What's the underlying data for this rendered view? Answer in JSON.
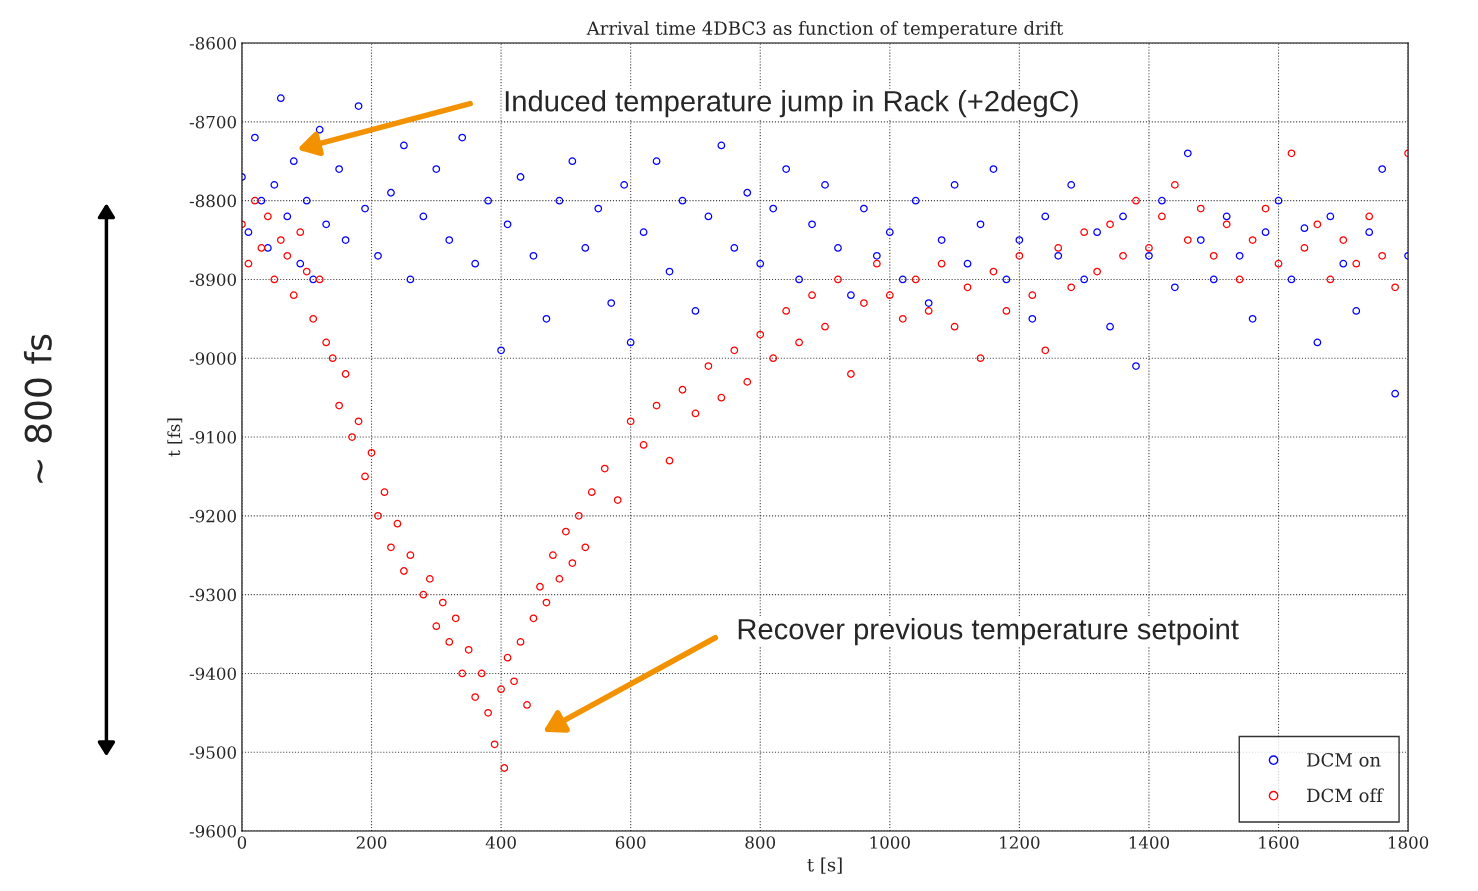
{
  "chart_data": {
    "type": "scatter",
    "title": "Arrival time 4DBC3 as function of temperature drift",
    "xlabel": "t [s]",
    "ylabel": "t [fs]",
    "xlim": [
      0,
      1800
    ],
    "xticks": [
      0,
      200,
      400,
      600,
      800,
      1000,
      1200,
      1400,
      1600,
      1800
    ],
    "ylim": [
      -9600,
      -8600
    ],
    "yticks": [
      -9600,
      -9500,
      -9400,
      -9300,
      -9200,
      -9100,
      -9000,
      -8900,
      -8800,
      -8700,
      -8600
    ],
    "grid": true,
    "legend": "bottom right",
    "marker": "circle",
    "annotations": [
      "Induced temperature jump in Rack (+2degC)",
      "Recover previous temperature setpoint",
      "~ 800 fs"
    ],
    "series": [
      {
        "name": "DCM on",
        "color": "#0000ff",
        "x": [
          0,
          10,
          20,
          30,
          40,
          50,
          60,
          70,
          80,
          90,
          100,
          110,
          120,
          130,
          150,
          160,
          180,
          190,
          210,
          230,
          250,
          260,
          280,
          300,
          320,
          340,
          360,
          380,
          400,
          410,
          430,
          450,
          470,
          490,
          510,
          530,
          550,
          570,
          590,
          600,
          620,
          640,
          660,
          680,
          700,
          720,
          740,
          760,
          780,
          800,
          820,
          840,
          860,
          880,
          900,
          920,
          940,
          960,
          980,
          1000,
          1020,
          1040,
          1060,
          1080,
          1100,
          1120,
          1140,
          1160,
          1180,
          1200,
          1220,
          1240,
          1260,
          1280,
          1300,
          1320,
          1340,
          1360,
          1380,
          1400,
          1420,
          1440,
          1460,
          1480,
          1500,
          1520,
          1540,
          1560,
          1580,
          1600,
          1620,
          1640,
          1660,
          1680,
          1700,
          1720,
          1740,
          1760,
          1780,
          1800
        ],
        "values": [
          -8770,
          -8840,
          -8720,
          -8800,
          -8860,
          -8780,
          -8670,
          -8820,
          -8750,
          -8880,
          -8800,
          -8900,
          -8710,
          -8830,
          -8760,
          -8850,
          -8680,
          -8810,
          -8870,
          -8790,
          -8730,
          -8900,
          -8820,
          -8760,
          -8850,
          -8720,
          -8880,
          -8800,
          -8990,
          -8830,
          -8770,
          -8870,
          -8950,
          -8800,
          -8750,
          -8860,
          -8810,
          -8930,
          -8780,
          -8980,
          -8840,
          -8750,
          -8890,
          -8800,
          -8940,
          -8820,
          -8730,
          -8860,
          -8790,
          -8880,
          -8810,
          -8760,
          -8900,
          -8830,
          -8780,
          -8860,
          -8920,
          -8810,
          -8870,
          -8840,
          -8900,
          -8800,
          -8930,
          -8850,
          -8780,
          -8880,
          -8830,
          -8760,
          -8900,
          -8850,
          -8950,
          -8820,
          -8870,
          -8780,
          -8900,
          -8840,
          -8960,
          -8820,
          -9010,
          -8870,
          -8800,
          -8910,
          -8740,
          -8850,
          -8900,
          -8820,
          -8870,
          -8950,
          -8840,
          -8800,
          -8900,
          -8835,
          -8980,
          -8820,
          -8880,
          -8940,
          -8840,
          -8760,
          -9045,
          -8870
        ]
      },
      {
        "name": "DCM off",
        "color": "#ff0000",
        "x": [
          0,
          10,
          20,
          30,
          40,
          50,
          60,
          70,
          80,
          90,
          100,
          110,
          120,
          130,
          140,
          150,
          160,
          170,
          180,
          190,
          200,
          210,
          220,
          230,
          240,
          250,
          260,
          280,
          290,
          300,
          310,
          320,
          330,
          340,
          350,
          360,
          370,
          380,
          390,
          400,
          405,
          410,
          420,
          430,
          440,
          450,
          460,
          470,
          480,
          490,
          500,
          510,
          520,
          530,
          540,
          560,
          580,
          600,
          620,
          640,
          660,
          680,
          700,
          720,
          740,
          760,
          780,
          800,
          820,
          840,
          860,
          880,
          900,
          920,
          940,
          960,
          980,
          1000,
          1020,
          1040,
          1060,
          1080,
          1100,
          1120,
          1140,
          1160,
          1180,
          1200,
          1220,
          1240,
          1260,
          1280,
          1300,
          1320,
          1340,
          1360,
          1380,
          1400,
          1420,
          1440,
          1460,
          1480,
          1500,
          1520,
          1540,
          1560,
          1580,
          1600,
          1620,
          1640,
          1660,
          1680,
          1700,
          1720,
          1740,
          1760,
          1780,
          1800
        ],
        "values": [
          -8830,
          -8880,
          -8800,
          -8860,
          -8820,
          -8900,
          -8850,
          -8870,
          -8920,
          -8840,
          -8890,
          -8950,
          -8900,
          -8980,
          -9000,
          -9060,
          -9020,
          -9100,
          -9080,
          -9150,
          -9120,
          -9200,
          -9170,
          -9240,
          -9210,
          -9270,
          -9250,
          -9300,
          -9280,
          -9340,
          -9310,
          -9360,
          -9330,
          -9400,
          -9370,
          -9430,
          -9400,
          -9450,
          -9490,
          -9420,
          -9520,
          -9380,
          -9410,
          -9360,
          -9440,
          -9330,
          -9290,
          -9310,
          -9250,
          -9280,
          -9220,
          -9260,
          -9200,
          -9240,
          -9170,
          -9140,
          -9180,
          -9080,
          -9110,
          -9060,
          -9130,
          -9040,
          -9070,
          -9010,
          -9050,
          -8990,
          -9030,
          -8970,
          -9000,
          -8940,
          -8980,
          -8920,
          -8960,
          -8900,
          -9020,
          -8930,
          -8880,
          -8920,
          -8950,
          -8900,
          -8940,
          -8880,
          -8960,
          -8910,
          -9000,
          -8890,
          -8940,
          -8870,
          -8920,
          -8990,
          -8860,
          -8910,
          -8840,
          -8890,
          -8830,
          -8870,
          -8800,
          -8860,
          -8820,
          -8780,
          -8850,
          -8810,
          -8870,
          -8830,
          -8900,
          -8850,
          -8810,
          -8880,
          -8740,
          -8860,
          -8830,
          -8900,
          -8850,
          -8880,
          -8820,
          -8870,
          -8910,
          -8740
        ]
      }
    ]
  }
}
